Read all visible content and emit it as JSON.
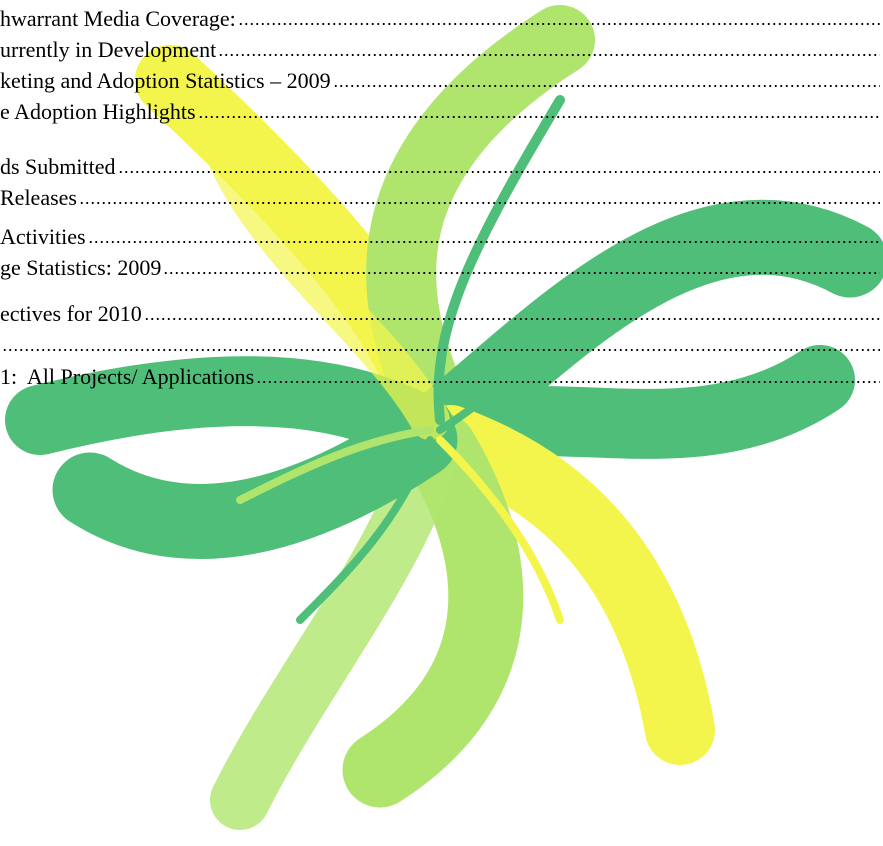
{
  "toc": {
    "entries": [
      {
        "text": "hwarrant Media Coverage:"
      },
      {
        "text": "urrently in Development"
      },
      {
        "text": "keting and Adoption Statistics – 2009"
      },
      {
        "text": "e Adoption Highlights"
      },
      {
        "text": "ds Submitted"
      },
      {
        "text": "Releases"
      },
      {
        "text": "Activities"
      },
      {
        "text": "ge Statistics: 2009"
      },
      {
        "text": "ectives for 2010"
      },
      {
        "text": "1:  All Projects/ Applications"
      }
    ]
  }
}
